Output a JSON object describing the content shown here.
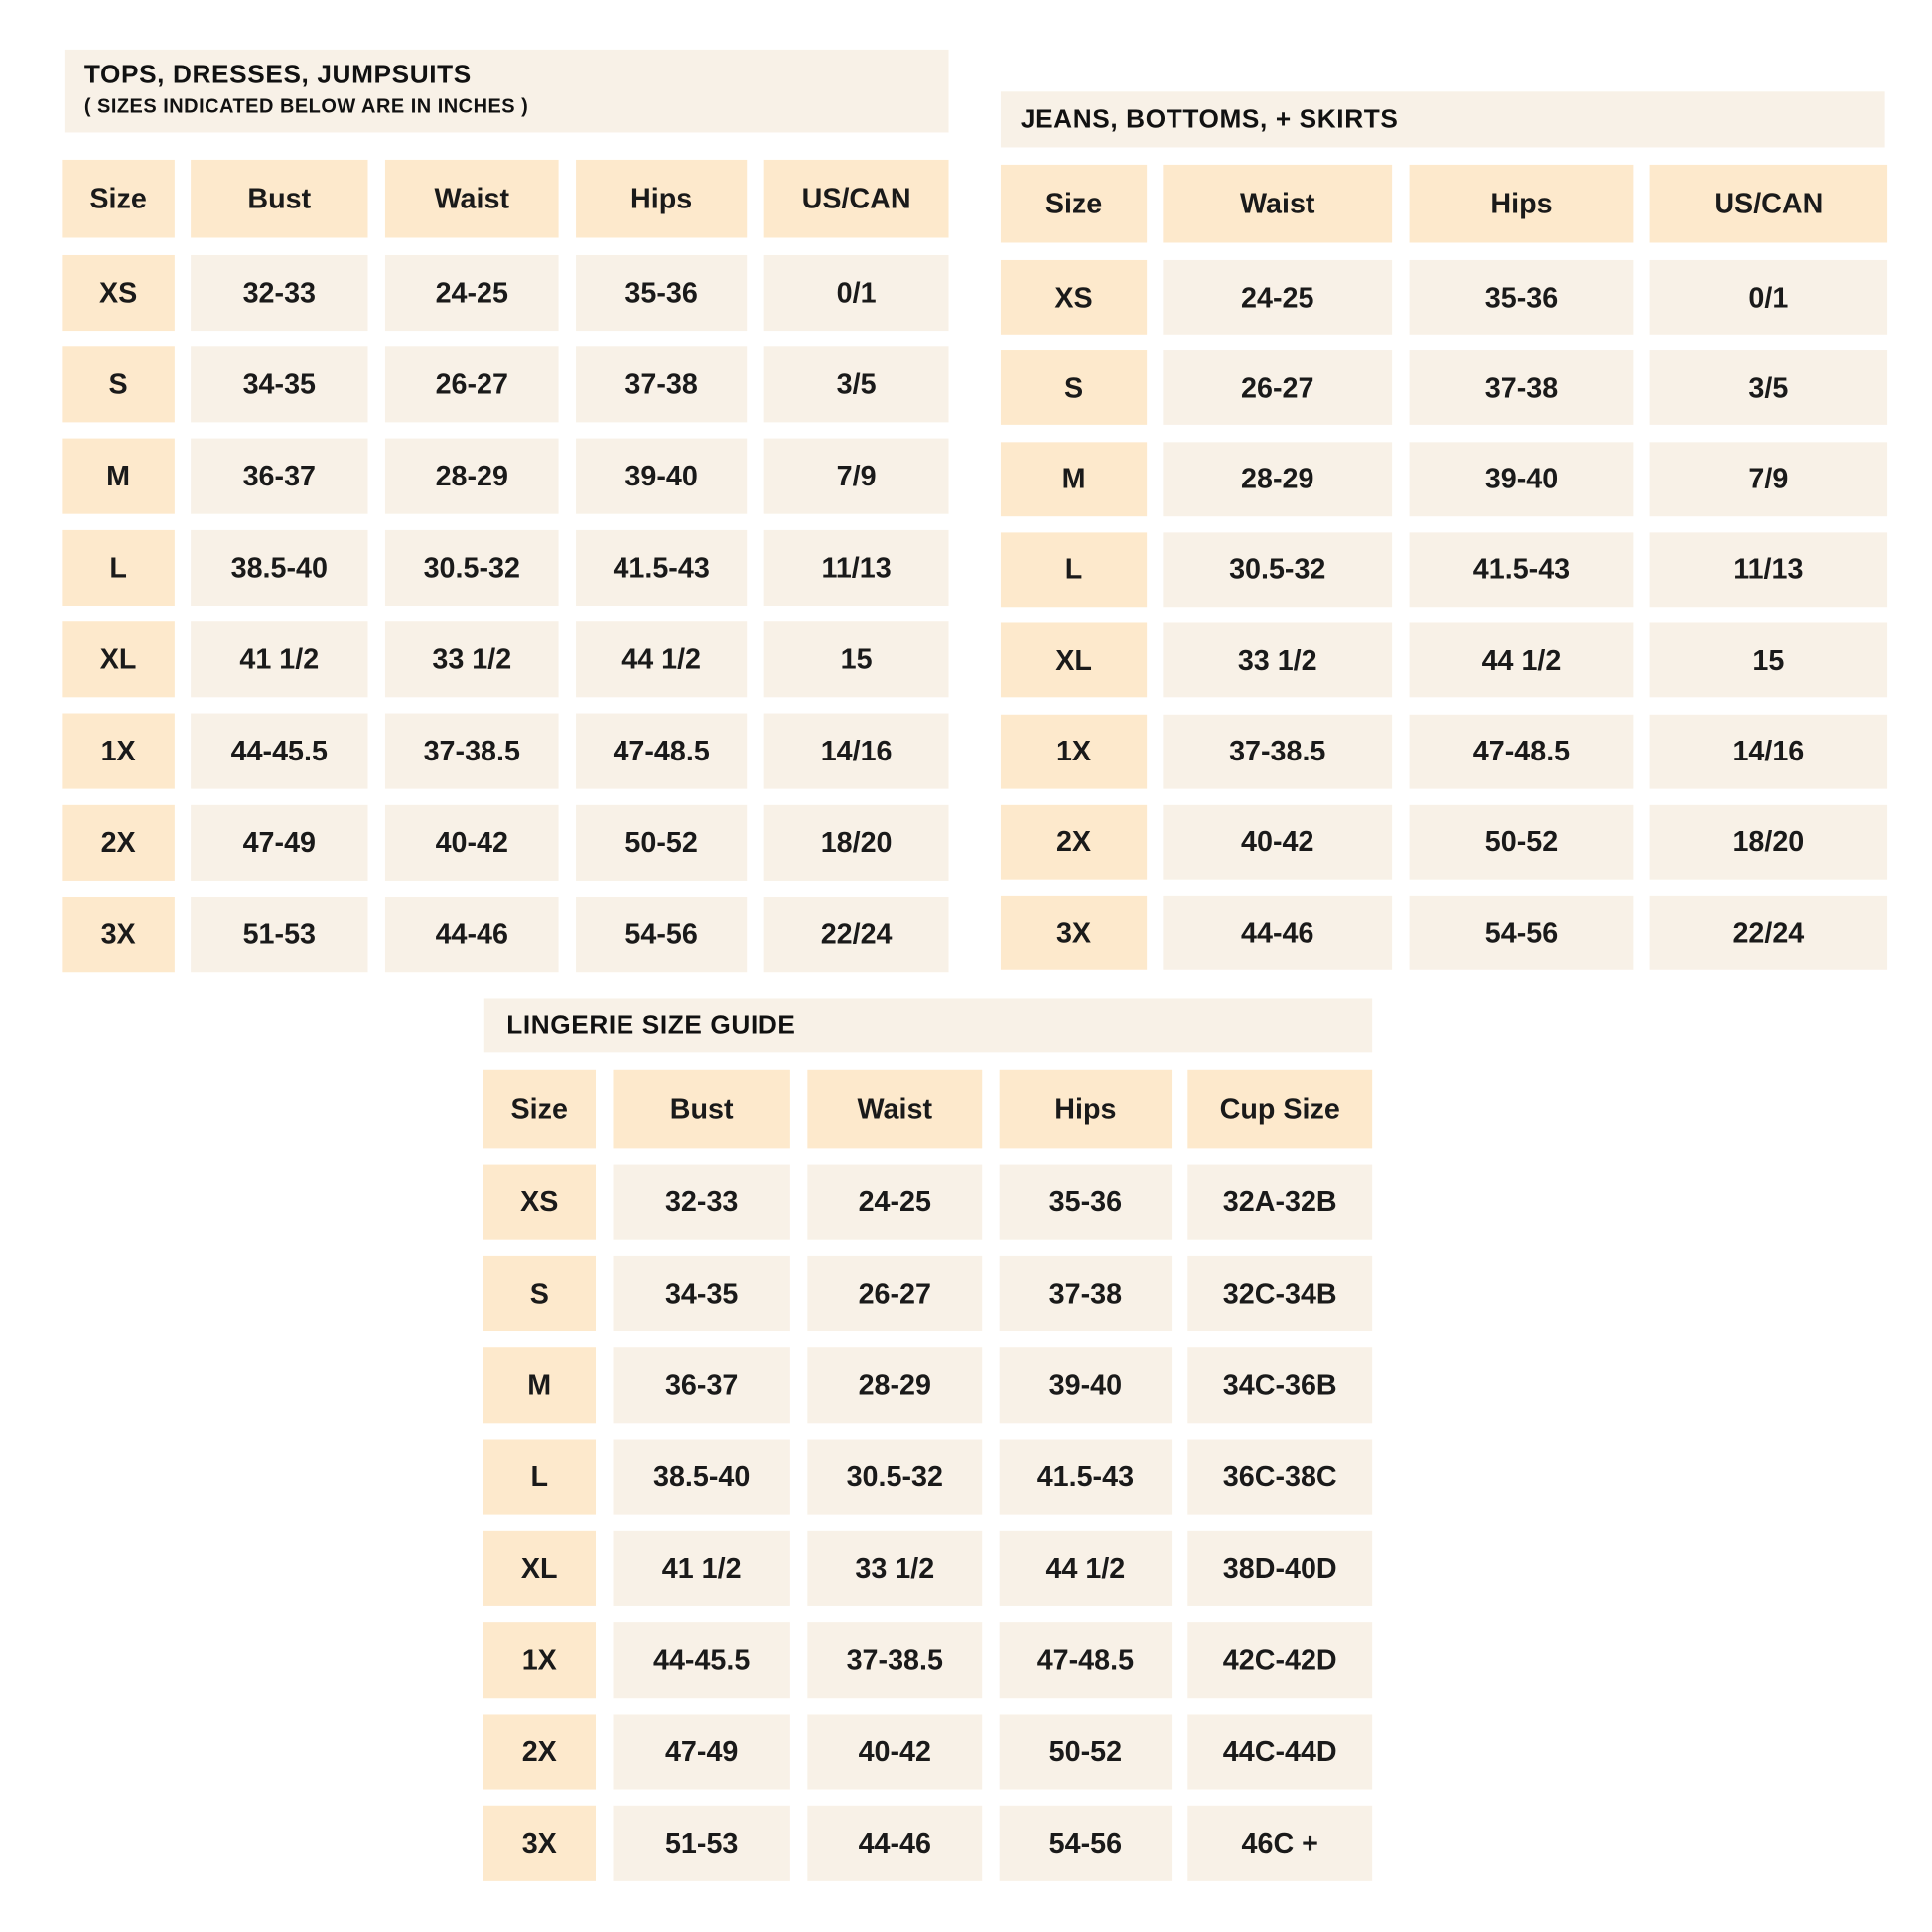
{
  "tables": [
    {
      "title": "TOPS, DRESSES, JUMPSUITS",
      "subtitle": "( SIZES INDICATED BELOW ARE IN INCHES )",
      "headers": [
        "Size",
        "Bust",
        "Waist",
        "Hips",
        "US/CAN"
      ],
      "rows": [
        [
          "XS",
          "32-33",
          "24-25",
          "35-36",
          "0/1"
        ],
        [
          "S",
          "34-35",
          "26-27",
          "37-38",
          "3/5"
        ],
        [
          "M",
          "36-37",
          "28-29",
          "39-40",
          "7/9"
        ],
        [
          "L",
          "38.5-40",
          "30.5-32",
          "41.5-43",
          "11/13"
        ],
        [
          "XL",
          "41 1/2",
          "33 1/2",
          "44 1/2",
          "15"
        ],
        [
          "1X",
          "44-45.5",
          "37-38.5",
          "47-48.5",
          "14/16"
        ],
        [
          "2X",
          "47-49",
          "40-42",
          "50-52",
          "18/20"
        ],
        [
          "3X",
          "51-53",
          "44-46",
          "54-56",
          "22/24"
        ]
      ]
    },
    {
      "title": "JEANS, BOTTOMS, + SKIRTS",
      "headers": [
        "Size",
        "Waist",
        "Hips",
        "US/CAN"
      ],
      "rows": [
        [
          "XS",
          "24-25",
          "35-36",
          "0/1"
        ],
        [
          "S",
          "26-27",
          "37-38",
          "3/5"
        ],
        [
          "M",
          "28-29",
          "39-40",
          "7/9"
        ],
        [
          "L",
          "30.5-32",
          "41.5-43",
          "11/13"
        ],
        [
          "XL",
          "33 1/2",
          "44 1/2",
          "15"
        ],
        [
          "1X",
          "37-38.5",
          "47-48.5",
          "14/16"
        ],
        [
          "2X",
          "40-42",
          "50-52",
          "18/20"
        ],
        [
          "3X",
          "44-46",
          "54-56",
          "22/24"
        ]
      ]
    },
    {
      "title": "LINGERIE SIZE GUIDE",
      "headers": [
        "Size",
        "Bust",
        "Waist",
        "Hips",
        "Cup Size"
      ],
      "rows": [
        [
          "XS",
          "32-33",
          "24-25",
          "35-36",
          "32A-32B"
        ],
        [
          "S",
          "34-35",
          "26-27",
          "37-38",
          "32C-34B"
        ],
        [
          "M",
          "36-37",
          "28-29",
          "39-40",
          "34C-36B"
        ],
        [
          "L",
          "38.5-40",
          "30.5-32",
          "41.5-43",
          "36C-38C"
        ],
        [
          "XL",
          "41 1/2",
          "33 1/2",
          "44 1/2",
          "38D-40D"
        ],
        [
          "1X",
          "44-45.5",
          "37-38.5",
          "47-48.5",
          "42C-42D"
        ],
        [
          "2X",
          "47-49",
          "40-42",
          "50-52",
          "44C-44D"
        ],
        [
          "3X",
          "51-53",
          "44-46",
          "54-56",
          "46C +"
        ]
      ]
    }
  ],
  "colors": {
    "header_cell": "#fde9cc",
    "value_cell": "#f8f1e7",
    "text": "#1a1a1a"
  }
}
